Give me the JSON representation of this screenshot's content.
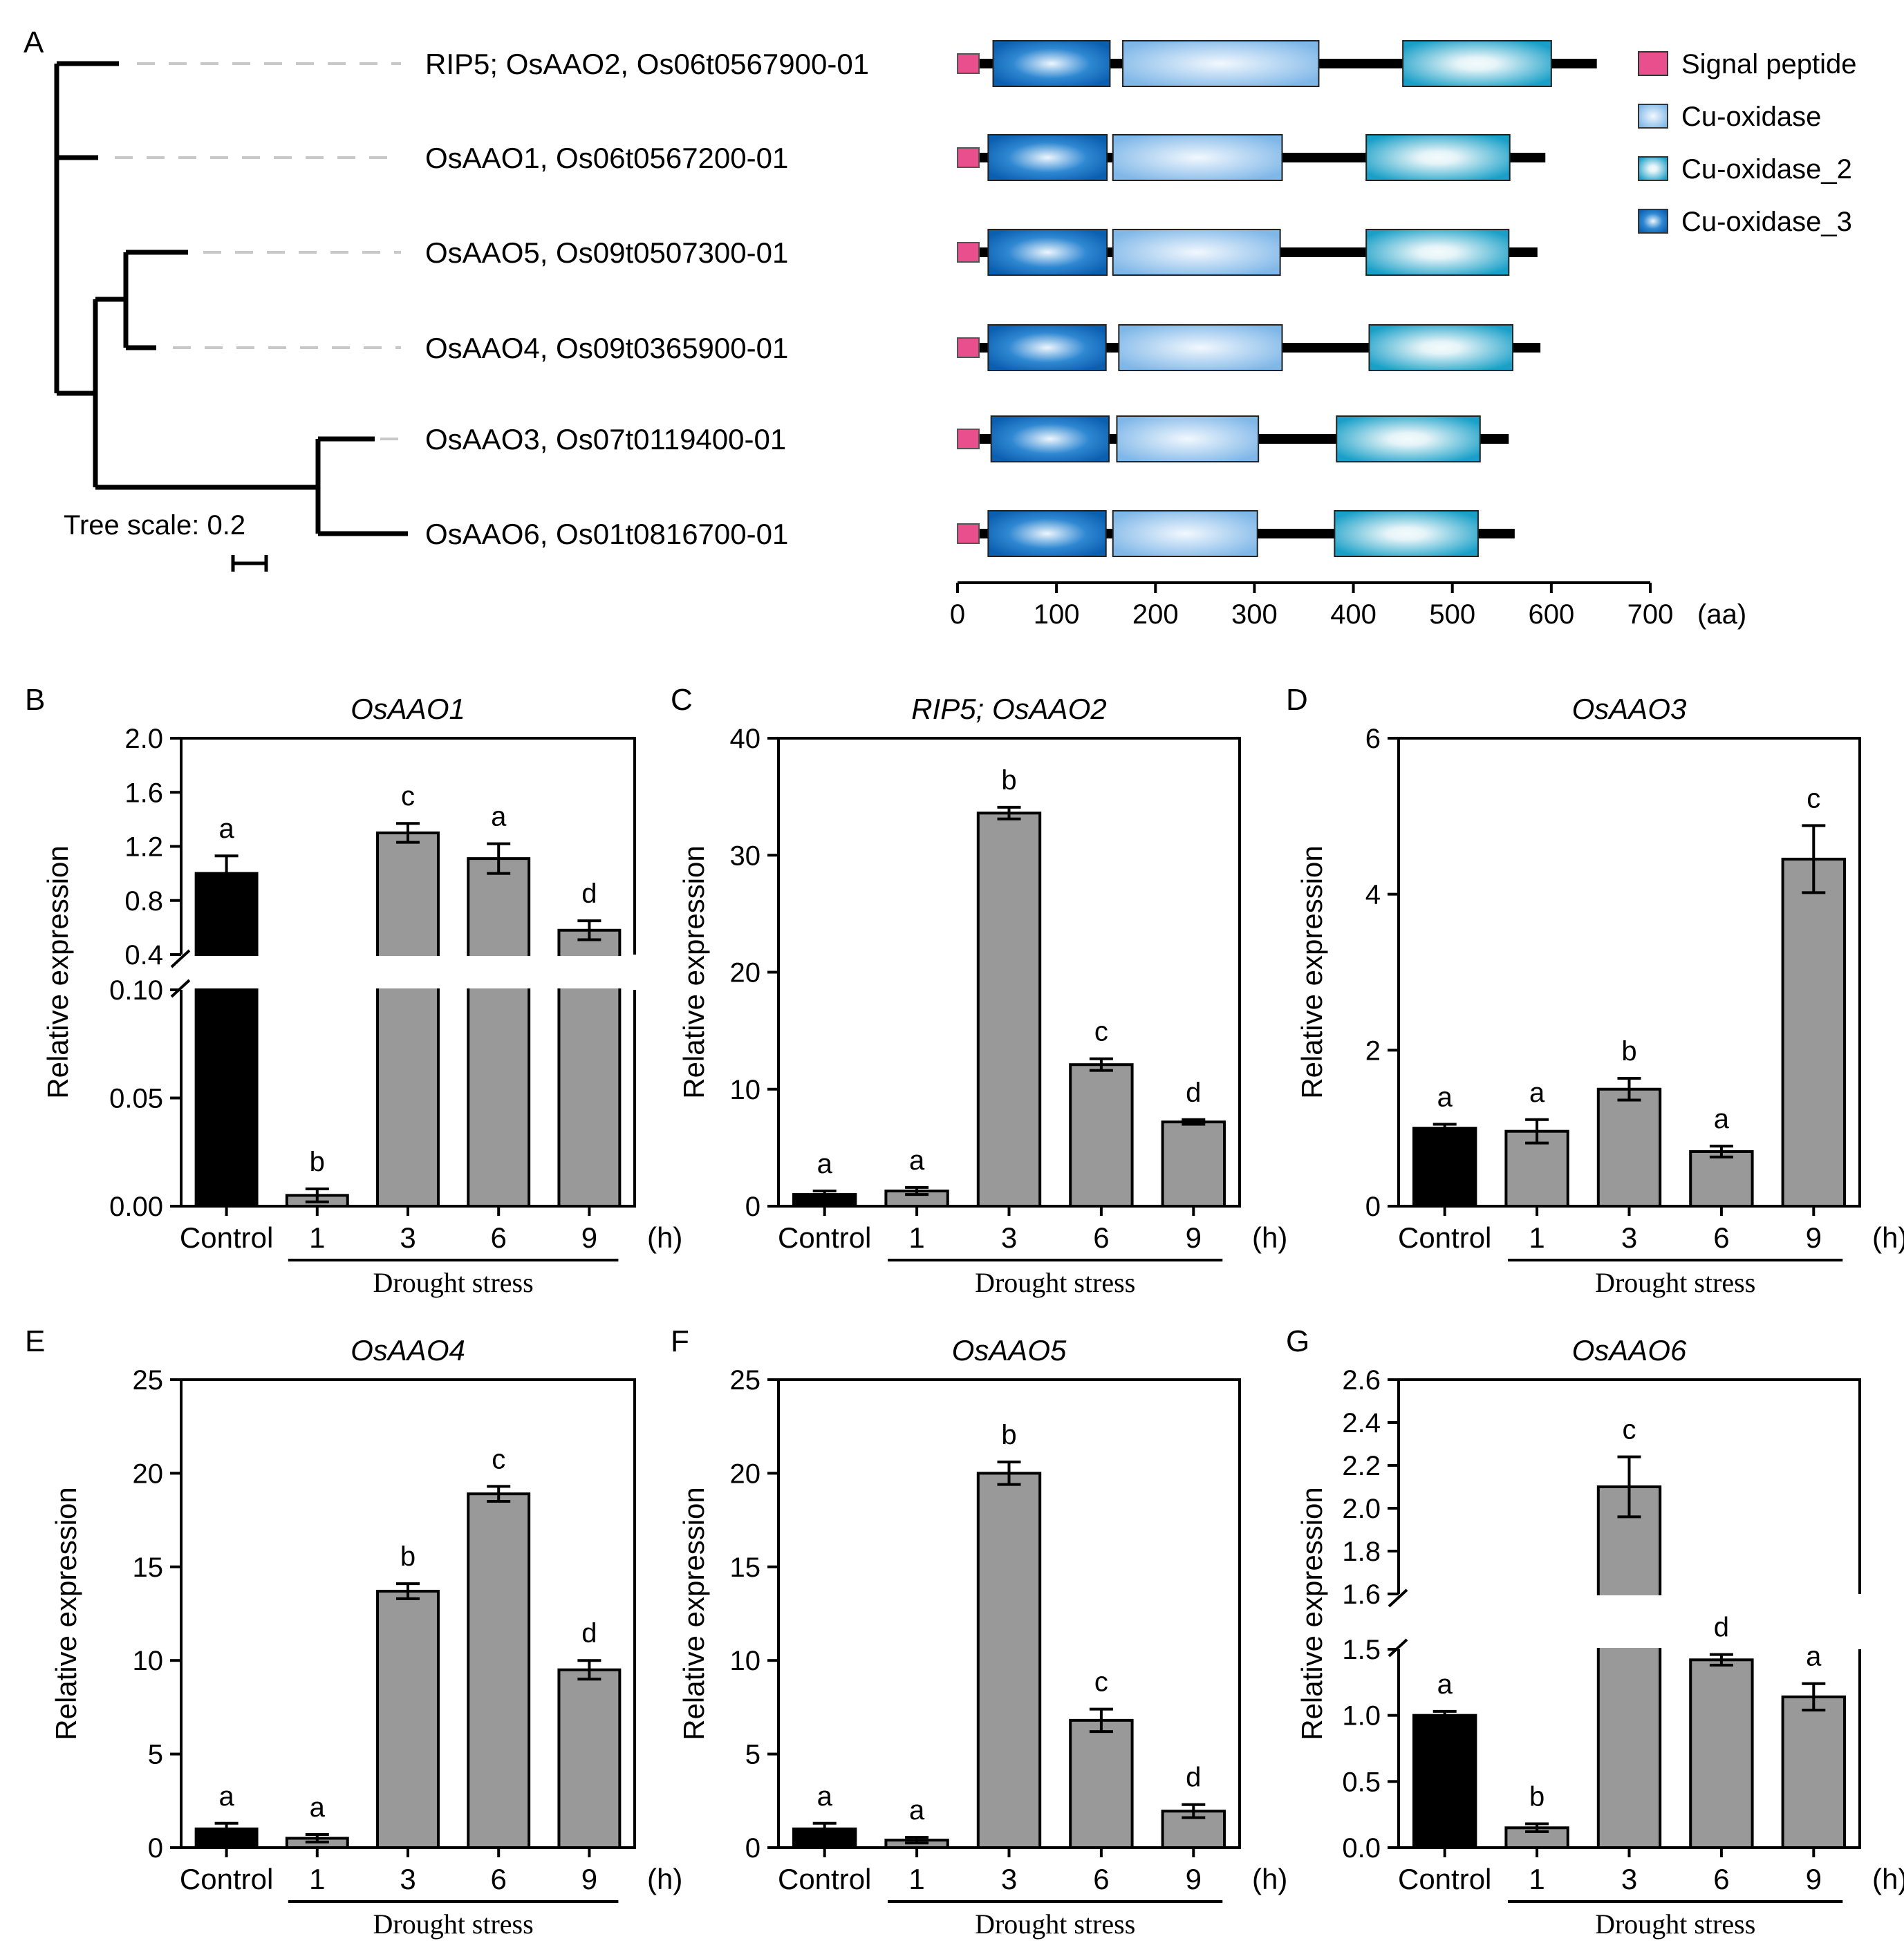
{
  "colors": {
    "control_bar": "#000000",
    "treatment_bar": "#999999",
    "signal_peptide": "#e84f8c",
    "cu_oxidase": "#7fb7e8",
    "cu_oxidase_2": "#1aa0c8",
    "cu_oxidase_3": "#0b5fb0"
  },
  "panelA": {
    "letter": "A",
    "tree_scale_label": "Tree scale: 0.2",
    "genes": [
      {
        "label": "RIP5; OsAAO2, Os06t0567900-01",
        "length": 646,
        "domains": [
          {
            "type": "sp",
            "start": 0,
            "end": 20
          },
          {
            "type": "d3",
            "start": 36,
            "end": 154
          },
          {
            "type": "d1",
            "start": 167,
            "end": 365
          },
          {
            "type": "d2",
            "start": 450,
            "end": 600
          }
        ]
      },
      {
        "label": "OsAAO1, Os06t0567200-01",
        "length": 594,
        "domains": [
          {
            "type": "sp",
            "start": 0,
            "end": 20
          },
          {
            "type": "d3",
            "start": 31,
            "end": 151
          },
          {
            "type": "d1",
            "start": 157,
            "end": 328
          },
          {
            "type": "d2",
            "start": 413,
            "end": 558
          }
        ]
      },
      {
        "label": "OsAAO5, Os09t0507300-01",
        "length": 586,
        "domains": [
          {
            "type": "sp",
            "start": 0,
            "end": 20
          },
          {
            "type": "d3",
            "start": 31,
            "end": 151
          },
          {
            "type": "d1",
            "start": 157,
            "end": 326
          },
          {
            "type": "d2",
            "start": 413,
            "end": 557
          }
        ]
      },
      {
        "label": "OsAAO4, Os09t0365900-01",
        "length": 589,
        "domains": [
          {
            "type": "sp",
            "start": 0,
            "end": 20
          },
          {
            "type": "d3",
            "start": 31,
            "end": 150
          },
          {
            "type": "d1",
            "start": 163,
            "end": 328
          },
          {
            "type": "d2",
            "start": 416,
            "end": 561
          }
        ]
      },
      {
        "label": "OsAAO3, Os07t0119400-01",
        "length": 557,
        "domains": [
          {
            "type": "sp",
            "start": 0,
            "end": 23
          },
          {
            "type": "d3",
            "start": 34,
            "end": 153
          },
          {
            "type": "d1",
            "start": 161,
            "end": 304
          },
          {
            "type": "d2",
            "start": 383,
            "end": 528
          }
        ]
      },
      {
        "label": "OsAAO6, Os01t0816700-01",
        "length": 563,
        "domains": [
          {
            "type": "sp",
            "start": 0,
            "end": 20
          },
          {
            "type": "d3",
            "start": 31,
            "end": 150
          },
          {
            "type": "d1",
            "start": 157,
            "end": 303
          },
          {
            "type": "d2",
            "start": 381,
            "end": 526
          }
        ]
      }
    ],
    "legend": [
      {
        "key": "sp",
        "label": "Signal peptide"
      },
      {
        "key": "d1",
        "label": "Cu-oxidase"
      },
      {
        "key": "d2",
        "label": "Cu-oxidase_2"
      },
      {
        "key": "d3",
        "label": "Cu-oxidase_3"
      }
    ],
    "axis": {
      "ticks": [
        0,
        100,
        200,
        300,
        400,
        500,
        600,
        700
      ],
      "unit": "(aa)"
    }
  },
  "chart_data": [
    {
      "panel": "B",
      "type": "bar",
      "title": "OsAAO1",
      "ylabel": "Relative expression",
      "categories": [
        "Control",
        "1",
        "3",
        "6",
        "9"
      ],
      "values": [
        1.0,
        0.005,
        1.3,
        1.11,
        0.58
      ],
      "errors": [
        0.13,
        0.003,
        0.07,
        0.11,
        0.07
      ],
      "letters": [
        "a",
        "b",
        "c",
        "a",
        "d"
      ],
      "broken_axis": {
        "lower": [
          0,
          0.1
        ],
        "lower_ticks": [
          "0.00",
          "0.05",
          "0.10"
        ],
        "upper": [
          0.4,
          2.0
        ],
        "upper_ticks": [
          "0.4",
          "0.8",
          "1.2",
          "1.6",
          "2.0"
        ]
      },
      "unit": "(h)",
      "group_label": "Drought stress"
    },
    {
      "panel": "C",
      "type": "bar",
      "title": "RIP5; OsAAO2",
      "ylabel": "Relative expression",
      "categories": [
        "Control",
        "1",
        "3",
        "6",
        "9"
      ],
      "values": [
        1.0,
        1.3,
        33.6,
        12.1,
        7.2
      ],
      "errors": [
        0.3,
        0.3,
        0.5,
        0.5,
        0.2
      ],
      "letters": [
        "a",
        "a",
        "b",
        "c",
        "d"
      ],
      "ylim": [
        0,
        40
      ],
      "yticks": [
        0,
        10,
        20,
        30,
        40
      ],
      "unit": "(h)",
      "group_label": "Drought stress"
    },
    {
      "panel": "D",
      "type": "bar",
      "title": "OsAAO3",
      "ylabel": "Relative expression",
      "categories": [
        "Control",
        "1",
        "3",
        "6",
        "9"
      ],
      "values": [
        1.0,
        0.96,
        1.5,
        0.7,
        4.45
      ],
      "errors": [
        0.05,
        0.15,
        0.14,
        0.07,
        0.43
      ],
      "letters": [
        "a",
        "a",
        "b",
        "a",
        "c"
      ],
      "ylim": [
        0,
        6
      ],
      "yticks": [
        0,
        2,
        4,
        6
      ],
      "unit": "(h)",
      "group_label": "Drought stress"
    },
    {
      "panel": "E",
      "type": "bar",
      "title": "OsAAO4",
      "ylabel": "Relative expression",
      "categories": [
        "Control",
        "1",
        "3",
        "6",
        "9"
      ],
      "values": [
        1.0,
        0.5,
        13.7,
        18.9,
        9.5
      ],
      "errors": [
        0.3,
        0.2,
        0.4,
        0.4,
        0.5
      ],
      "letters": [
        "a",
        "a",
        "b",
        "c",
        "d"
      ],
      "ylim": [
        0,
        25
      ],
      "yticks": [
        0,
        5,
        10,
        15,
        20,
        25
      ],
      "unit": "(h)",
      "group_label": "Drought stress"
    },
    {
      "panel": "F",
      "type": "bar",
      "title": "OsAAO5",
      "ylabel": "Relative expression",
      "categories": [
        "Control",
        "1",
        "3",
        "6",
        "9"
      ],
      "values": [
        1.0,
        0.4,
        20.0,
        6.8,
        1.95
      ],
      "errors": [
        0.3,
        0.15,
        0.6,
        0.6,
        0.35
      ],
      "letters": [
        "a",
        "a",
        "b",
        "c",
        "d"
      ],
      "ylim": [
        0,
        25
      ],
      "yticks": [
        0,
        5,
        10,
        15,
        20,
        25
      ],
      "unit": "(h)",
      "group_label": "Drought stress"
    },
    {
      "panel": "G",
      "type": "bar",
      "title": "OsAAO6",
      "ylabel": "Relative expression",
      "categories": [
        "Control",
        "1",
        "3",
        "6",
        "9"
      ],
      "values": [
        1.0,
        0.15,
        2.1,
        1.42,
        1.14
      ],
      "errors": [
        0.03,
        0.03,
        0.14,
        0.04,
        0.1
      ],
      "letters": [
        "a",
        "b",
        "c",
        "d",
        "a"
      ],
      "broken_axis": {
        "lower": [
          0,
          1.5
        ],
        "lower_ticks": [
          "0.0",
          "0.5",
          "1.0",
          "1.5"
        ],
        "upper": [
          1.6,
          2.6
        ],
        "upper_ticks": [
          "1.6",
          "1.8",
          "2.0",
          "2.2",
          "2.4",
          "2.6"
        ]
      },
      "unit": "(h)",
      "group_label": "Drought stress"
    }
  ]
}
